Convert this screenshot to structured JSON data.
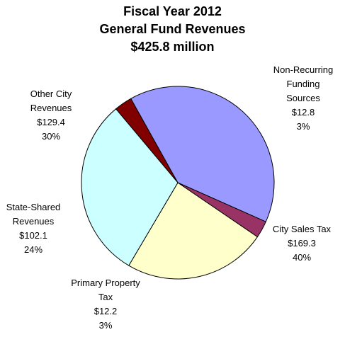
{
  "chart_data": {
    "type": "pie",
    "title": [
      "Fiscal Year 2012",
      "General Fund Revenues",
      "$425.8 million"
    ],
    "slices": [
      {
        "label": [
          "Non-Recurring",
          "Funding",
          "Sources"
        ],
        "value": 12.8,
        "value_text": "$12.8",
        "percent_text": "3%",
        "color": "#800000"
      },
      {
        "label": [
          "City Sales Tax"
        ],
        "value": 169.3,
        "value_text": "$169.3",
        "percent_text": "40%",
        "color": "#9999ff"
      },
      {
        "label": [
          "Primary Property",
          "Tax"
        ],
        "value": 12.2,
        "value_text": "$12.2",
        "percent_text": "3%",
        "color": "#993366"
      },
      {
        "label": [
          "State-Shared",
          "Revenues"
        ],
        "value": 102.1,
        "value_text": "$102.1",
        "percent_text": "24%",
        "color": "#ffffcc"
      },
      {
        "label": [
          "Other City",
          "Revenues"
        ],
        "value": 129.4,
        "value_text": "$129.4",
        "percent_text": "30%",
        "color": "#ccffff"
      }
    ],
    "legend": "none"
  }
}
